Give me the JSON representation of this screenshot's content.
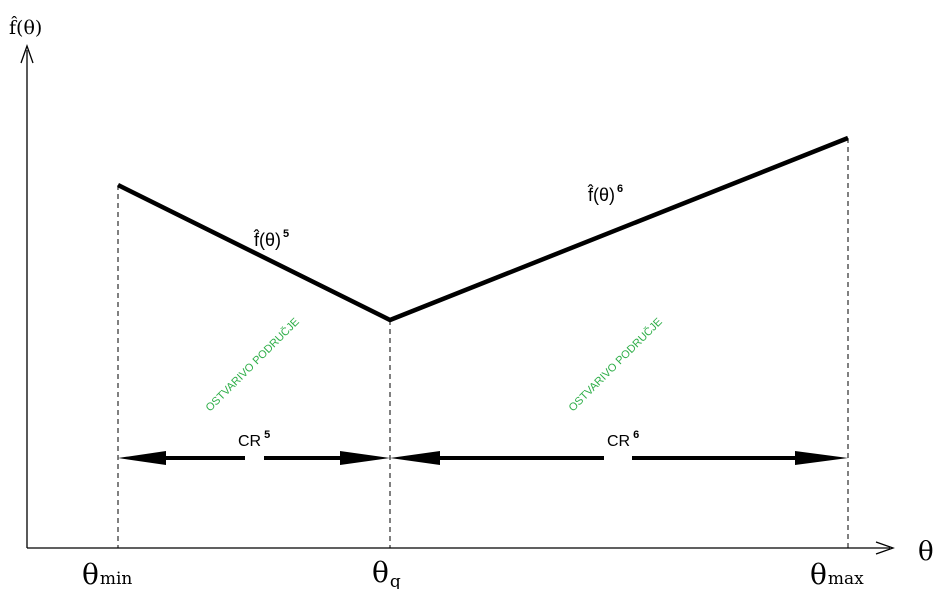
{
  "axes": {
    "y_label": "f̂(θ)",
    "x_label": "θ",
    "ticks": [
      {
        "symbol": "θ",
        "sub": "min"
      },
      {
        "symbol": "θ",
        "sub": "q"
      },
      {
        "symbol": "θ",
        "sub": "max"
      }
    ]
  },
  "functions": [
    {
      "label": "f̂(θ)",
      "sup": "5"
    },
    {
      "label": "f̂(θ)",
      "sup": "6"
    }
  ],
  "regions": [
    {
      "label": "CR",
      "sup": "5",
      "text": "OSTVARIVO PODRUČJE"
    },
    {
      "label": "CR",
      "sup": "6",
      "text": "OSTVARIVO PODRUČJE"
    }
  ],
  "colors": {
    "lines": "#000000",
    "region_text": "#2eae48"
  }
}
